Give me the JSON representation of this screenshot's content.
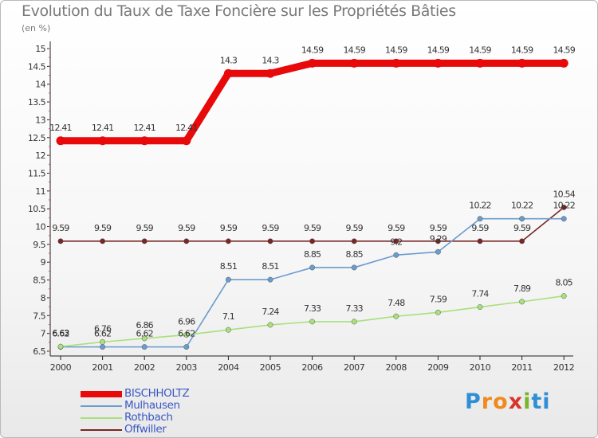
{
  "title": "Evolution du Taux de Taxe Foncière sur les Propriétés Bâties",
  "subtitle": "(en %)",
  "logo": [
    "P",
    "r",
    "o",
    "x",
    "i",
    "ti"
  ],
  "chart_data": {
    "type": "line",
    "x": [
      "2000",
      "2001",
      "2002",
      "2003",
      "2004",
      "2005",
      "2006",
      "2007",
      "2008",
      "2009",
      "2010",
      "2011",
      "2012"
    ],
    "ylim": [
      6.5,
      15
    ],
    "yticks": [
      6.5,
      7,
      7.5,
      8,
      8.5,
      9,
      9.5,
      10,
      10.5,
      11,
      11.5,
      12,
      12.5,
      13,
      13.5,
      14,
      14.5,
      15
    ],
    "yticklabels": [
      "6.5",
      "7",
      "7.5",
      "8",
      "8.5",
      "9",
      "9.5",
      "10",
      "10.5",
      "11",
      "11.5",
      "12",
      "12.5",
      "13",
      "13.5",
      "14",
      "14.5",
      "15"
    ],
    "grid": false,
    "legend_position": "bottom-left",
    "series": [
      {
        "name": "BISCHHOLTZ",
        "color": "#e8090a",
        "values": [
          12.41,
          12.41,
          12.41,
          12.41,
          14.3,
          14.3,
          14.59,
          14.59,
          14.59,
          14.59,
          14.59,
          14.59,
          14.59
        ],
        "labels": [
          "12.41",
          "12.41",
          "12.41",
          "12.41",
          "14.3",
          "14.3",
          "14.59",
          "14.59",
          "14.59",
          "14.59",
          "14.59",
          "14.59",
          "14.59"
        ]
      },
      {
        "name": "Mulhausen",
        "color": "#6a9ccd",
        "values": [
          6.62,
          6.62,
          6.62,
          6.62,
          8.51,
          8.51,
          8.85,
          8.85,
          9.2,
          9.29,
          10.22,
          10.22,
          10.22
        ],
        "labels": [
          "6.62",
          "6.62",
          "6.62",
          "6.62",
          "8.51",
          "8.51",
          "8.85",
          "8.85",
          "9.2",
          "9.29",
          "10.22",
          "10.22",
          "10.22"
        ]
      },
      {
        "name": "Rothbach",
        "color": "#a9e07b",
        "values": [
          6.63,
          6.76,
          6.86,
          6.96,
          7.1,
          7.24,
          7.33,
          7.33,
          7.48,
          7.59,
          7.74,
          7.89,
          8.05
        ],
        "labels": [
          "6.63",
          "6.76",
          "6.86",
          "6.96",
          "7.1",
          "7.24",
          "7.33",
          "7.33",
          "7.48",
          "7.59",
          "7.74",
          "7.89",
          "8.05"
        ]
      },
      {
        "name": "Offwiller",
        "color": "#7a2626",
        "values": [
          9.59,
          9.59,
          9.59,
          9.59,
          9.59,
          9.59,
          9.59,
          9.59,
          9.59,
          9.59,
          9.59,
          9.59,
          10.54
        ],
        "labels": [
          "9.59",
          "9.59",
          "9.59",
          "9.59",
          "9.59",
          "9.59",
          "9.59",
          "9.59",
          "9.59",
          "9.59",
          "9.59",
          "9.59",
          "10.54"
        ]
      }
    ]
  }
}
